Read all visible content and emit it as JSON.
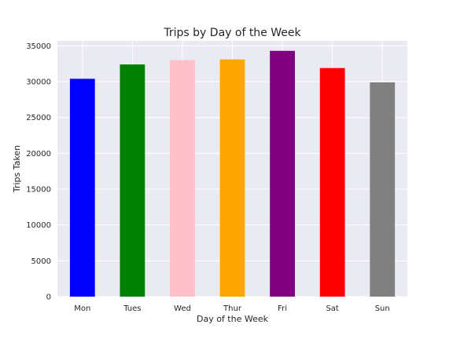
{
  "chart_data": {
    "type": "bar",
    "title": "Trips by Day of the Week",
    "xlabel": "Day of the Week",
    "ylabel": "Trips Taken",
    "categories": [
      "Mon",
      "Tues",
      "Wed",
      "Thur",
      "Fri",
      "Sat",
      "Sun"
    ],
    "values": [
      30400,
      32400,
      33000,
      33100,
      34300,
      31900,
      29900
    ],
    "bar_colors": [
      "#0000ff",
      "#008000",
      "#ffc0cb",
      "#ffa500",
      "#800080",
      "#ff0000",
      "#808080"
    ],
    "ylim": [
      0,
      35700
    ],
    "yticks": [
      0,
      5000,
      10000,
      15000,
      20000,
      25000,
      30000,
      35000
    ],
    "ytick_labels": [
      "0",
      "5000",
      "10000",
      "15000",
      "20000",
      "25000",
      "30000",
      "35000"
    ],
    "grid": true,
    "legend": "none",
    "plot_background": "#eaeaf2",
    "grid_color": "#ffffff"
  }
}
